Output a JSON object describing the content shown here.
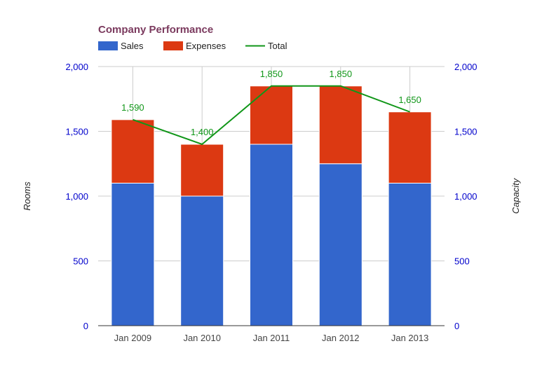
{
  "chart_data": {
    "type": "bar",
    "stacked": true,
    "title": "Company Performance",
    "categories": [
      "Jan 2009",
      "Jan 2010",
      "Jan 2011",
      "Jan 2012",
      "Jan 2013"
    ],
    "series": [
      {
        "name": "Sales",
        "type": "bar",
        "color": "#3366cc",
        "values": [
          1100,
          1000,
          1400,
          1250,
          1100
        ]
      },
      {
        "name": "Expenses",
        "type": "bar",
        "color": "#dc3912",
        "values": [
          490,
          400,
          450,
          600,
          550
        ]
      },
      {
        "name": "Total",
        "type": "line",
        "color": "#109618",
        "values": [
          1590,
          1400,
          1850,
          1850,
          1650
        ]
      }
    ],
    "data_labels": [
      "1,590",
      "1,400",
      "1,850",
      "1,850",
      "1,650"
    ],
    "ylabel": "Rooms",
    "y2label": "Capacity",
    "ylim": [
      0,
      2000
    ],
    "y2lim": [
      0,
      2000
    ],
    "yticks": [
      "0",
      "500",
      "1,000",
      "1,500",
      "2,000"
    ],
    "y2ticks": [
      "0",
      "500",
      "1,000",
      "1,500",
      "2,000"
    ],
    "grid": true,
    "legend_position": "top-left",
    "colors": {
      "title": "#7b3a5e",
      "tick": "#0000cc",
      "data_label": "#109618",
      "grid": "#cccccc"
    }
  }
}
